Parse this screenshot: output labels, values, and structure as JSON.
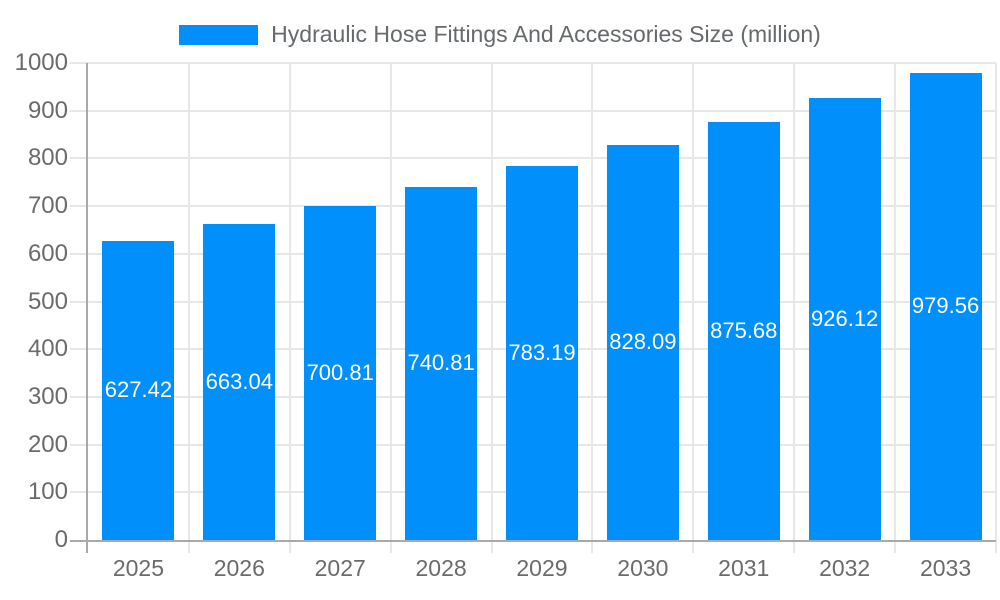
{
  "chart_data": {
    "type": "bar",
    "title": "Hydraulic Hose Fittings And Accessories Size (million)",
    "categories": [
      "2025",
      "2026",
      "2027",
      "2028",
      "2029",
      "2030",
      "2031",
      "2032",
      "2033"
    ],
    "values": [
      627.42,
      663.04,
      700.81,
      740.81,
      783.19,
      828.09,
      875.68,
      926.12,
      979.56
    ],
    "data_labels": [
      "627.42",
      "663.04",
      "700.81",
      "740.81",
      "783.19",
      "828.09",
      "875.68",
      "926.12",
      "979.56"
    ],
    "xlabel": "",
    "ylabel": "",
    "ylim": [
      0,
      1000
    ],
    "ytick_step": 100,
    "ytick_labels": [
      "0",
      "100",
      "200",
      "300",
      "400",
      "500",
      "600",
      "700",
      "800",
      "900",
      "1000"
    ],
    "grid": true,
    "legend_position": "top",
    "legend_entries": [
      "Hydraulic Hose Fittings And Accessories Size (million)"
    ]
  },
  "colors": {
    "bar": "#008FFB",
    "bar_label": "#ffffff",
    "grid": "#e7e7e7",
    "axis": "#a9a9a9",
    "tick_text": "#6b6b6b",
    "title_text": "#666a6d",
    "background": "#ffffff"
  }
}
